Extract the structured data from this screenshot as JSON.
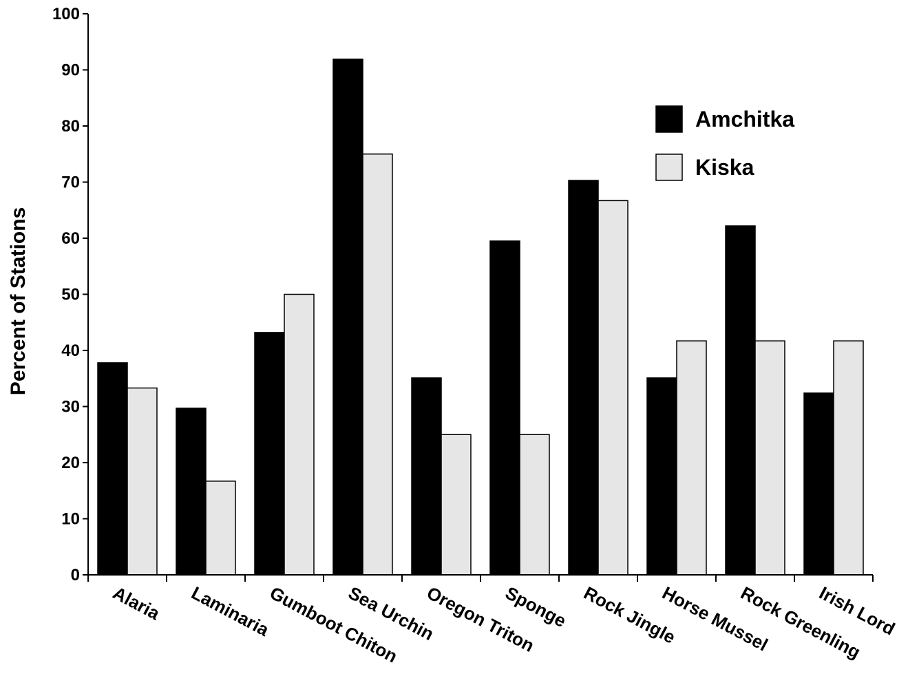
{
  "chart_data": {
    "type": "bar",
    "title": "",
    "xlabel": "",
    "ylabel": "Percent of Stations",
    "ylim": [
      0,
      100
    ],
    "yticks": [
      0,
      10,
      20,
      30,
      40,
      50,
      60,
      70,
      80,
      90,
      100
    ],
    "grid": false,
    "legend_position": "top-right",
    "categories": [
      "Alaria",
      "Laminaria",
      "Gumboot Chiton",
      "Sea Urchin",
      "Oregon Triton",
      "Sponge",
      "Rock Jingle",
      "Horse Mussel",
      "Rock Greenling",
      "Irish Lord"
    ],
    "series": [
      {
        "name": "Amchitka",
        "color": "#000000",
        "values": [
          37.8,
          29.7,
          43.2,
          91.9,
          35.1,
          59.5,
          70.3,
          35.1,
          62.2,
          32.4
        ]
      },
      {
        "name": "Kiska",
        "color": "#e6e6e6",
        "values": [
          33.3,
          16.7,
          50.0,
          75.0,
          25.0,
          25.0,
          66.7,
          41.7,
          41.7,
          41.7
        ]
      }
    ]
  }
}
